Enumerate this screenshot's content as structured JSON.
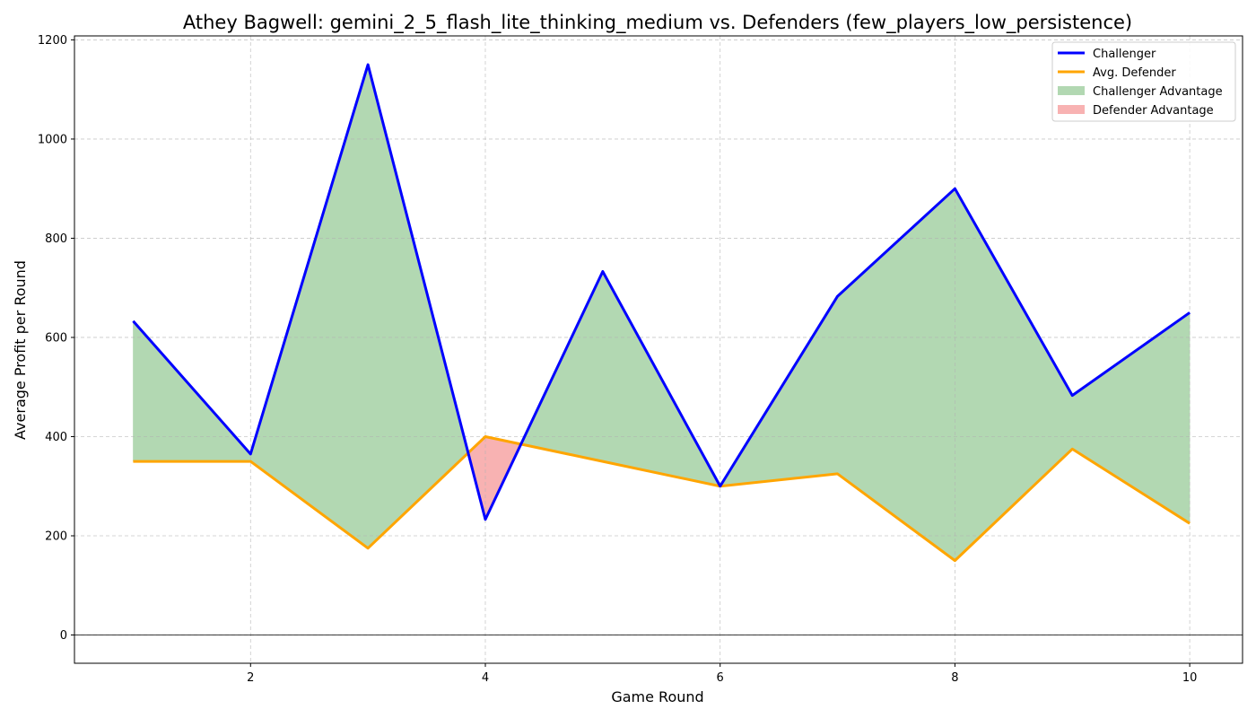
{
  "chart_data": {
    "type": "line",
    "title": "Athey Bagwell: gemini_2_5_flash_lite_thinking_medium vs. Defenders (few_players_low_persistence)",
    "xlabel": "Game Round",
    "ylabel": "Average Profit per Round",
    "x": [
      1,
      2,
      3,
      4,
      5,
      6,
      7,
      8,
      9,
      10
    ],
    "series": [
      {
        "name": "Challenger",
        "color": "#0000ff",
        "values": [
          633,
          365,
          1150,
          233,
          733,
          300,
          683,
          900,
          483,
          650
        ]
      },
      {
        "name": "Avg. Defender",
        "color": "#ffa500",
        "values": [
          350,
          350,
          175,
          400,
          350,
          300,
          325,
          150,
          375,
          225
        ]
      }
    ],
    "fills": [
      {
        "name": "Challenger Advantage",
        "color": "#b2d8b2"
      },
      {
        "name": "Defender Advantage",
        "color": "#f8b2b2"
      }
    ],
    "xlim": [
      0.5,
      10.45
    ],
    "ylim": [
      -57,
      1208
    ],
    "xticks": [
      2,
      4,
      6,
      8,
      10
    ],
    "yticks": [
      0,
      200,
      400,
      600,
      800,
      1000,
      1200
    ],
    "grid": true,
    "legend_position": "top-right"
  }
}
